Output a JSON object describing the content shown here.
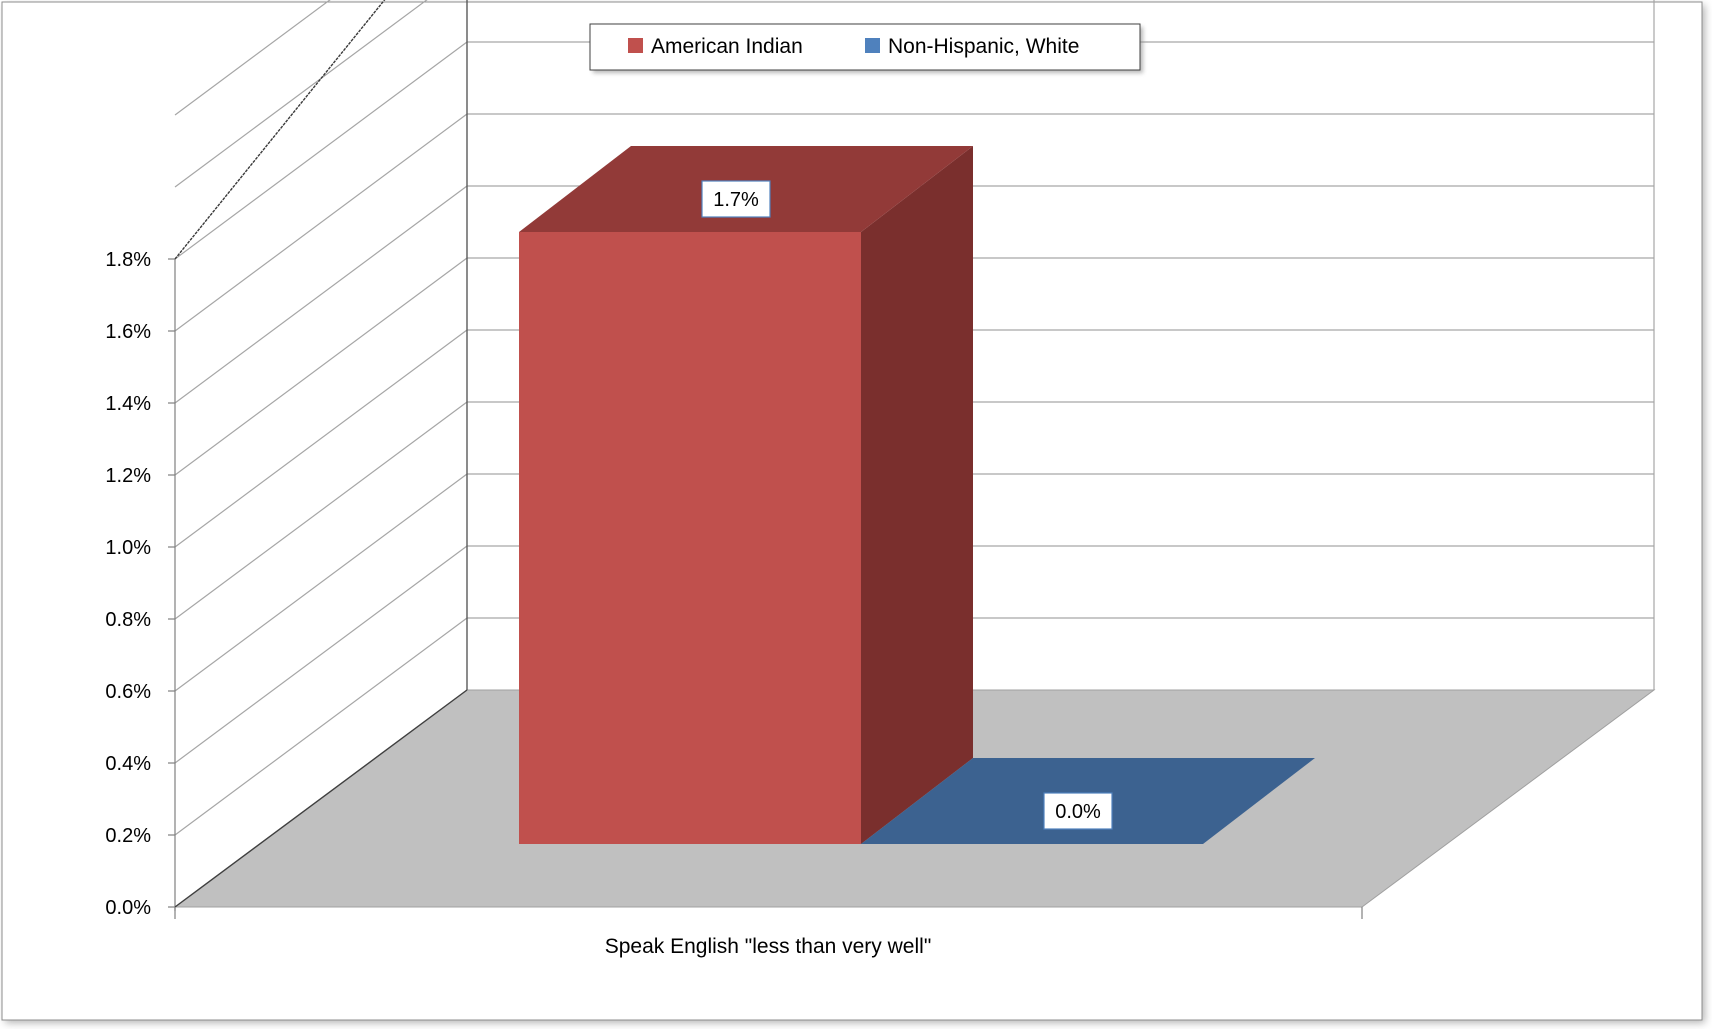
{
  "chart_data": {
    "type": "bar",
    "style": "3d-column",
    "categories": [
      "Speak English \"less than very well\""
    ],
    "series": [
      {
        "name": "American Indian",
        "values": [
          1.7
        ],
        "value_label": "1.7%",
        "color": "#C0504D",
        "top_color": "#923A38",
        "side_color": "#7A2F2D"
      },
      {
        "name": "Non-Hispanic, White",
        "values": [
          0.0
        ],
        "value_label": "0.0%",
        "color": "#4F81BD",
        "top_color": "#3C6290"
      }
    ],
    "ylim": [
      0,
      1.8
    ],
    "y_unit": "%",
    "y_ticks": [
      "0.0%",
      "0.2%",
      "0.4%",
      "0.6%",
      "0.8%",
      "1.0%",
      "1.2%",
      "1.4%",
      "1.6%",
      "1.8%"
    ],
    "grid": true,
    "floor_color": "#C0C0C0",
    "legend_position": "top"
  }
}
